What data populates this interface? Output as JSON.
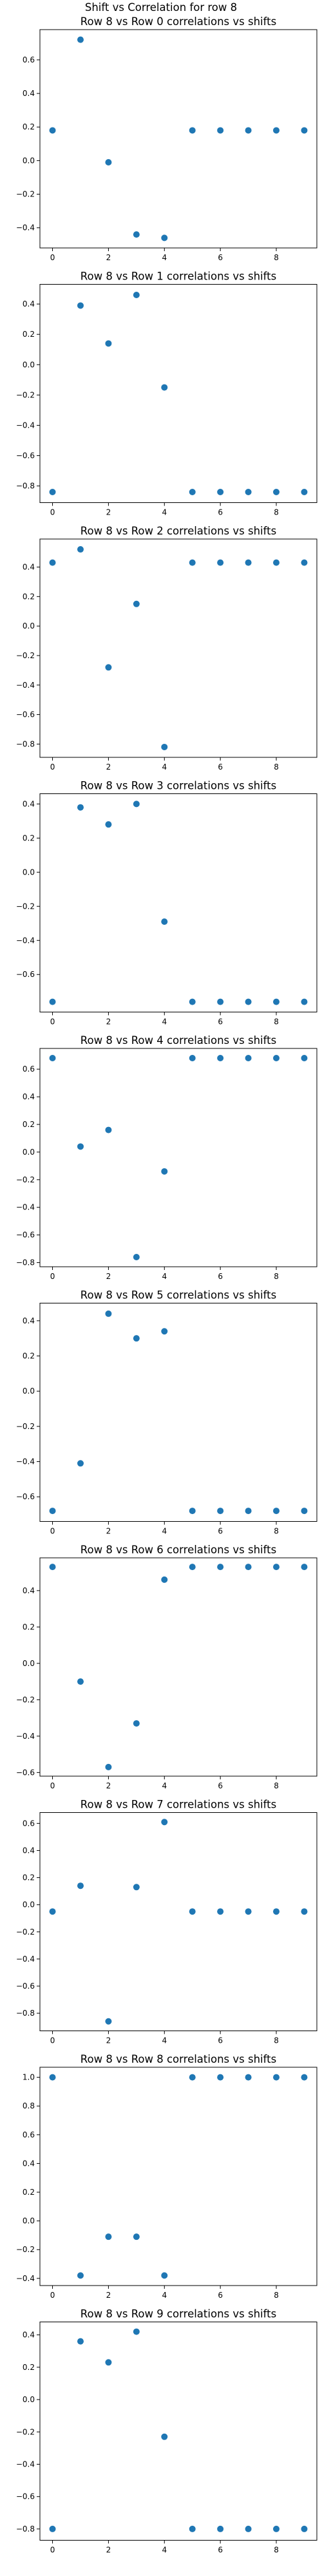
{
  "figure": {
    "suptitle": "Shift vs Correlation for row 8",
    "marker_color": "#1f77b4"
  },
  "chart_data": [
    {
      "type": "scatter",
      "title": "Row 8 vs Row 0 correlations vs shifts",
      "x": [
        0,
        1,
        2,
        3,
        4,
        5,
        6,
        7,
        8,
        9
      ],
      "y": [
        0.18,
        0.72,
        -0.01,
        -0.44,
        -0.46,
        0.18,
        0.18,
        0.18,
        0.18,
        0.18
      ],
      "xticks": [
        0,
        2,
        4,
        6,
        8
      ],
      "yticks": [
        -0.4,
        -0.2,
        0.0,
        0.2,
        0.4,
        0.6
      ],
      "ylim": [
        -0.52,
        0.78
      ],
      "grid": false
    },
    {
      "type": "scatter",
      "title": "Row 8 vs Row 1 correlations vs shifts",
      "x": [
        0,
        1,
        2,
        3,
        4,
        5,
        6,
        7,
        8,
        9
      ],
      "y": [
        -0.84,
        0.39,
        0.14,
        0.46,
        -0.15,
        -0.84,
        -0.84,
        -0.84,
        -0.84,
        -0.84
      ],
      "xticks": [
        0,
        2,
        4,
        6,
        8
      ],
      "yticks": [
        -0.8,
        -0.6,
        -0.4,
        -0.2,
        0.0,
        0.2,
        0.4
      ],
      "ylim": [
        -0.91,
        0.53
      ],
      "grid": false
    },
    {
      "type": "scatter",
      "title": "Row 8 vs Row 2 correlations vs shifts",
      "x": [
        0,
        1,
        2,
        3,
        4,
        5,
        6,
        7,
        8,
        9
      ],
      "y": [
        0.43,
        0.52,
        -0.28,
        0.15,
        -0.82,
        0.43,
        0.43,
        0.43,
        0.43,
        0.43
      ],
      "xticks": [
        0,
        2,
        4,
        6,
        8
      ],
      "yticks": [
        -0.8,
        -0.6,
        -0.4,
        -0.2,
        0.0,
        0.2,
        0.4
      ],
      "ylim": [
        -0.89,
        0.59
      ],
      "grid": false
    },
    {
      "type": "scatter",
      "title": "Row 8 vs Row 3 correlations vs shifts",
      "x": [
        0,
        1,
        2,
        3,
        4,
        5,
        6,
        7,
        8,
        9
      ],
      "y": [
        -0.76,
        0.38,
        0.28,
        0.4,
        -0.29,
        -0.76,
        -0.76,
        -0.76,
        -0.76,
        -0.76
      ],
      "xticks": [
        0,
        2,
        4,
        6,
        8
      ],
      "yticks": [
        -0.6,
        -0.4,
        -0.2,
        0.0,
        0.2,
        0.4
      ],
      "ylim": [
        -0.82,
        0.46
      ],
      "grid": false
    },
    {
      "type": "scatter",
      "title": "Row 8 vs Row 4 correlations vs shifts",
      "x": [
        0,
        1,
        2,
        3,
        4,
        5,
        6,
        7,
        8,
        9
      ],
      "y": [
        0.68,
        0.04,
        0.16,
        -0.76,
        -0.14,
        0.68,
        0.68,
        0.68,
        0.68,
        0.68
      ],
      "xticks": [
        0,
        2,
        4,
        6,
        8
      ],
      "yticks": [
        -0.8,
        -0.6,
        -0.4,
        -0.2,
        0.0,
        0.2,
        0.4,
        0.6
      ],
      "ylim": [
        -0.83,
        0.75
      ],
      "grid": false
    },
    {
      "type": "scatter",
      "title": "Row 8 vs Row 5 correlations vs shifts",
      "x": [
        0,
        1,
        2,
        3,
        4,
        5,
        6,
        7,
        8,
        9
      ],
      "y": [
        -0.68,
        -0.41,
        0.44,
        0.3,
        0.34,
        -0.68,
        -0.68,
        -0.68,
        -0.68,
        -0.68
      ],
      "xticks": [
        0,
        2,
        4,
        6,
        8
      ],
      "yticks": [
        -0.6,
        -0.4,
        -0.2,
        0.0,
        0.2,
        0.4
      ],
      "ylim": [
        -0.74,
        0.5
      ],
      "grid": false
    },
    {
      "type": "scatter",
      "title": "Row 8 vs Row 6 correlations vs shifts",
      "x": [
        0,
        1,
        2,
        3,
        4,
        5,
        6,
        7,
        8,
        9
      ],
      "y": [
        0.53,
        -0.1,
        -0.57,
        -0.33,
        0.46,
        0.53,
        0.53,
        0.53,
        0.53,
        0.53
      ],
      "xticks": [
        0,
        2,
        4,
        6,
        8
      ],
      "yticks": [
        -0.6,
        -0.4,
        -0.2,
        0.0,
        0.2,
        0.4
      ],
      "ylim": [
        -0.62,
        0.58
      ],
      "grid": false
    },
    {
      "type": "scatter",
      "title": "Row 8 vs Row 7 correlations vs shifts",
      "x": [
        0,
        1,
        2,
        3,
        4,
        5,
        6,
        7,
        8,
        9
      ],
      "y": [
        -0.05,
        0.14,
        -0.86,
        0.13,
        0.61,
        -0.05,
        -0.05,
        -0.05,
        -0.05,
        -0.05
      ],
      "xticks": [
        0,
        2,
        4,
        6,
        8
      ],
      "yticks": [
        -0.8,
        -0.6,
        -0.4,
        -0.2,
        0.0,
        0.2,
        0.4,
        0.6
      ],
      "ylim": [
        -0.93,
        0.68
      ],
      "grid": false
    },
    {
      "type": "scatter",
      "title": "Row 8 vs Row 8 correlations vs shifts",
      "x": [
        0,
        1,
        2,
        3,
        4,
        5,
        6,
        7,
        8,
        9
      ],
      "y": [
        1.0,
        -0.38,
        -0.11,
        -0.11,
        -0.38,
        1.0,
        1.0,
        1.0,
        1.0,
        1.0
      ],
      "xticks": [
        0,
        2,
        4,
        6,
        8
      ],
      "yticks": [
        -0.4,
        -0.2,
        0.0,
        0.2,
        0.4,
        0.6,
        0.8,
        1.0
      ],
      "ylim": [
        -0.45,
        1.07
      ],
      "grid": false
    },
    {
      "type": "scatter",
      "title": "Row 8 vs Row 9 correlations vs shifts",
      "x": [
        0,
        1,
        2,
        3,
        4,
        5,
        6,
        7,
        8,
        9
      ],
      "y": [
        -0.8,
        0.36,
        0.23,
        0.42,
        -0.23,
        -0.8,
        -0.8,
        -0.8,
        -0.8,
        -0.8
      ],
      "xticks": [
        0,
        2,
        4,
        6,
        8
      ],
      "yticks": [
        -0.8,
        -0.6,
        -0.4,
        -0.2,
        0.0,
        0.2,
        0.4
      ],
      "ylim": [
        -0.87,
        0.48
      ],
      "grid": false
    }
  ]
}
